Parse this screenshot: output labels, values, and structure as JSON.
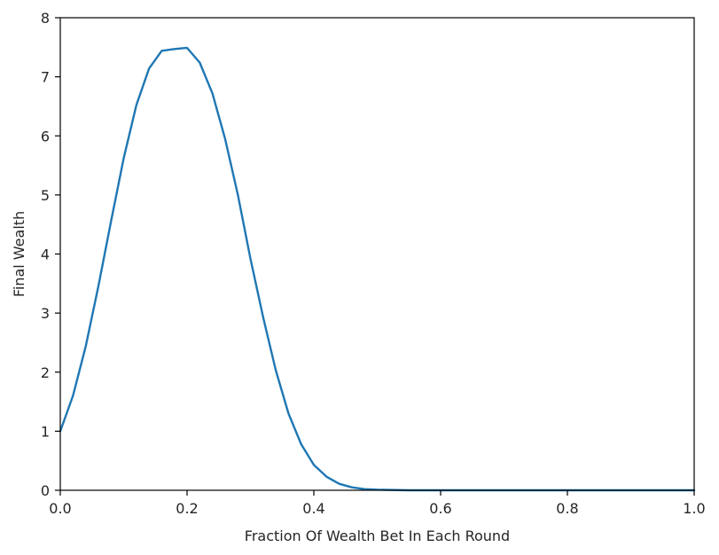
{
  "chart_data": {
    "type": "line",
    "title": "",
    "xlabel": "Fraction Of Wealth Bet In Each Round",
    "ylabel": "Final Wealth",
    "xlim": [
      0.0,
      1.0
    ],
    "ylim": [
      0,
      8
    ],
    "x_ticks": [
      "0.0",
      "0.2",
      "0.4",
      "0.6",
      "0.8",
      "1.0"
    ],
    "y_ticks": [
      "0",
      "1",
      "2",
      "3",
      "4",
      "5",
      "6",
      "7",
      "8"
    ],
    "grid": false,
    "legend": "none",
    "series": [
      {
        "color": "#1f77b4",
        "x": [
          0.0,
          0.02,
          0.04,
          0.06,
          0.08,
          0.1,
          0.12,
          0.14,
          0.16,
          0.18,
          0.2,
          0.22,
          0.24,
          0.26,
          0.28,
          0.3,
          0.32,
          0.34,
          0.36,
          0.38,
          0.4,
          0.42,
          0.44,
          0.46,
          0.48,
          0.5,
          0.55,
          0.6,
          0.7,
          0.8,
          0.9,
          1.0
        ],
        "y": [
          1.0,
          1.6,
          2.43,
          3.45,
          4.55,
          5.62,
          6.52,
          7.14,
          7.44,
          7.47,
          7.49,
          7.24,
          6.72,
          5.95,
          5.01,
          3.92,
          2.93,
          2.03,
          1.3,
          0.78,
          0.43,
          0.23,
          0.11,
          0.05,
          0.02,
          0.01,
          0.0,
          0.0,
          0.0,
          0.0,
          0.0,
          0.0
        ]
      }
    ]
  }
}
